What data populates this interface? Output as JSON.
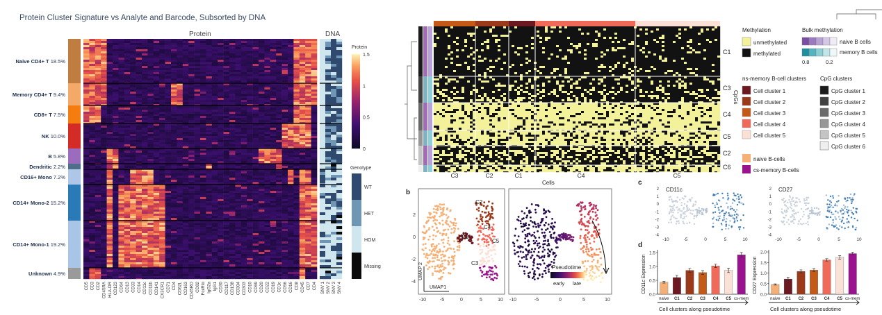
{
  "left": {
    "title": "Protein Cluster Signature vs Analyte and Barcode, Subsorted by DNA",
    "protein_header": "Protein",
    "dna_header": "DNA",
    "clusters": [
      {
        "name": "Naive CD4+ T",
        "pct": "18.5%",
        "color": "#c07d42"
      },
      {
        "name": "Memory CD4+ T",
        "pct": "9.4%",
        "color": "#f4a968"
      },
      {
        "name": "CD8+ T",
        "pct": "7.5%",
        "color": "#f57c0e"
      },
      {
        "name": "NK",
        "pct": "10.0%",
        "color": "#d42b27"
      },
      {
        "name": "B",
        "pct": "5.8%",
        "color": "#9b6bbd"
      },
      {
        "name": "Dendritic",
        "pct": "2.2%",
        "color": "#4f6e8a"
      },
      {
        "name": "CD16+ Mono",
        "pct": "7.2%",
        "color": "#aec7e8"
      },
      {
        "name": "CD14+ Mono-2",
        "pct": "15.2%",
        "color": "#2a7ab8"
      },
      {
        "name": "CD14+ Mono-1",
        "pct": "19.2%",
        "color": "#a8c5e8"
      },
      {
        "name": "Unknown",
        "pct": "4.9%",
        "color": "#9a9a9a"
      }
    ],
    "protein_labels": [
      "CD5",
      "CD3",
      "CD2",
      "CD45RA",
      "HLA-DR",
      "CD123",
      "CD64",
      "CD13",
      "CD33",
      "CD14",
      "CD11c",
      "CD11b",
      "CD141",
      "CX3CR1",
      "CD71",
      "CD4",
      "CD62L",
      "CD163",
      "CD45RO",
      "CD82",
      "FcεRIα",
      "IgG2a",
      "IgG1",
      "CD30",
      "CD117",
      "CD138",
      "CD304",
      "CD303",
      "CD10",
      "CD69",
      "CD20",
      "CD22",
      "CD19",
      "CD1c",
      "CD56",
      "CD16",
      "CD8",
      "CD45",
      "CD7",
      "CD4"
    ],
    "dna_labels": [
      "SNV 1",
      "SNV 2",
      "SNV 3",
      "SNV 4"
    ],
    "protein_legend": {
      "title": "Protein",
      "ticks": [
        "1.5",
        "1",
        "0.5",
        "0"
      ]
    },
    "genotype_legend": {
      "title": "Genotype",
      "items": [
        {
          "label": "WT",
          "color": "#2f4a6e"
        },
        {
          "label": "HET",
          "color": "#6f97b5"
        },
        {
          "label": "HOM",
          "color": "#cfe6ef"
        },
        {
          "label": "Missing",
          "color": "#0a0a0a"
        }
      ]
    }
  },
  "right": {
    "panel_b_label": "b",
    "panel_c_label": "c",
    "panel_d_label": "d",
    "heatmap_col_labels": [
      "C3",
      "C2",
      "C1",
      "C4",
      "C5"
    ],
    "heatmap_row_labels": [
      "C1",
      "C3",
      "C4",
      "C5",
      "C2",
      "C6"
    ],
    "heatmap_xlabel": "Cells",
    "heatmap_ylabel": "CpGs",
    "methylation_legend": {
      "title": "Methylation",
      "items": [
        {
          "label": "unmethylated",
          "color": "#f3f29a"
        },
        {
          "label": "methylated",
          "color": "#111111"
        }
      ]
    },
    "bulk_legend": {
      "title": "Bulk methylation",
      "naive": "naive B cells",
      "memory": "memory B cells",
      "ticks": [
        "0.8",
        "0.2"
      ]
    },
    "ns_clusters": {
      "title": "ns-memory B-cell clusters",
      "items": [
        {
          "label": "Cell cluster 1",
          "color": "#6b1820"
        },
        {
          "label": "Cell cluster 2",
          "color": "#9a3a1a"
        },
        {
          "label": "Cell cluster 3",
          "color": "#c45a18"
        },
        {
          "label": "Cell cluster 4",
          "color": "#f06a5a"
        },
        {
          "label": "Cell cluster 5",
          "color": "#fbe0d6"
        }
      ]
    },
    "cpg_clusters": {
      "title": "CpG clusters",
      "items": [
        {
          "label": "CpG cluster 1",
          "color": "#1a1a1a"
        },
        {
          "label": "CpG cluster 2",
          "color": "#404040"
        },
        {
          "label": "CpG cluster 3",
          "color": "#6a6a6a"
        },
        {
          "label": "CpG cluster 4",
          "color": "#969696"
        },
        {
          "label": "CpG cluster 5",
          "color": "#c4c4c4"
        },
        {
          "label": "CpG cluster 6",
          "color": "#efefef"
        }
      ]
    },
    "extra_legend": [
      {
        "label": "naive B-cells",
        "color": "#f6b075"
      },
      {
        "label": "cs-memory B-cells",
        "color": "#9a128e"
      }
    ],
    "umap": {
      "xlabel": "UMAP1",
      "ylabel": "UMAP 2",
      "cluster_labels": [
        "C2",
        "C4",
        "C1",
        "C5",
        "C3"
      ],
      "xticks": [
        "-10",
        "-5",
        "0",
        "5",
        "10"
      ],
      "yticks": [
        "2",
        "0",
        "-2",
        "-4"
      ],
      "pseudotime_title": "Pseudotime",
      "early": "early",
      "late": "late"
    },
    "feature_plots": [
      {
        "title": "CD11c",
        "xticks": [
          "-10",
          "-5",
          "0",
          "5",
          "10"
        ],
        "yticks": [
          "2",
          "1",
          "0",
          "-1",
          "-2",
          "-3",
          "-4"
        ]
      },
      {
        "title": "CD27",
        "xticks": [
          "-10",
          "-5",
          "0",
          "5",
          "10"
        ],
        "yticks": [
          "2",
          "1",
          "0",
          "-1",
          "-2",
          "-3",
          "-4"
        ]
      }
    ],
    "bar_charts": [
      {
        "ylabel": "CD11c Expression",
        "xlabel": "Cell clusters along pseudotime",
        "yticks": [
          "0.0",
          "0.5",
          "1.0",
          "1.5"
        ]
      },
      {
        "ylabel": "CD27 Expression",
        "xlabel": "Cell clusters along pseudotime",
        "yticks": [
          "0.0",
          "0.5",
          "1.0",
          "1.5",
          "2.0"
        ]
      }
    ]
  },
  "chart_data": [
    {
      "type": "bar",
      "ylabel": "CD11c Expression",
      "xlabel": "Cell clusters along pseudotime",
      "categories": [
        "naive",
        "C1",
        "C2",
        "C3",
        "C4",
        "C5",
        "cs-mem"
      ],
      "values": [
        0.43,
        0.6,
        0.86,
        0.78,
        1.02,
        0.86,
        1.42
      ],
      "errors": [
        0.03,
        0.08,
        0.07,
        0.07,
        0.06,
        0.08,
        0.08
      ],
      "colors": [
        "#f6b075",
        "#6b1820",
        "#9a3a1a",
        "#c45a18",
        "#f06a5a",
        "#fbe0d6",
        "#9a128e"
      ],
      "ylim": [
        0,
        1.6
      ]
    },
    {
      "type": "bar",
      "ylabel": "CD27 Expression",
      "xlabel": "Cell clusters along pseudotime",
      "categories": [
        "naive",
        "C1",
        "C2",
        "C3",
        "C4",
        "C5",
        "cs-mem"
      ],
      "values": [
        0.46,
        0.72,
        1.08,
        1.14,
        1.62,
        1.74,
        1.92
      ],
      "errors": [
        0.03,
        0.08,
        0.07,
        0.07,
        0.06,
        0.08,
        0.06
      ],
      "colors": [
        "#f6b075",
        "#6b1820",
        "#9a3a1a",
        "#c45a18",
        "#f06a5a",
        "#fbe0d6",
        "#9a128e"
      ],
      "ylim": [
        0,
        2.1
      ]
    }
  ]
}
